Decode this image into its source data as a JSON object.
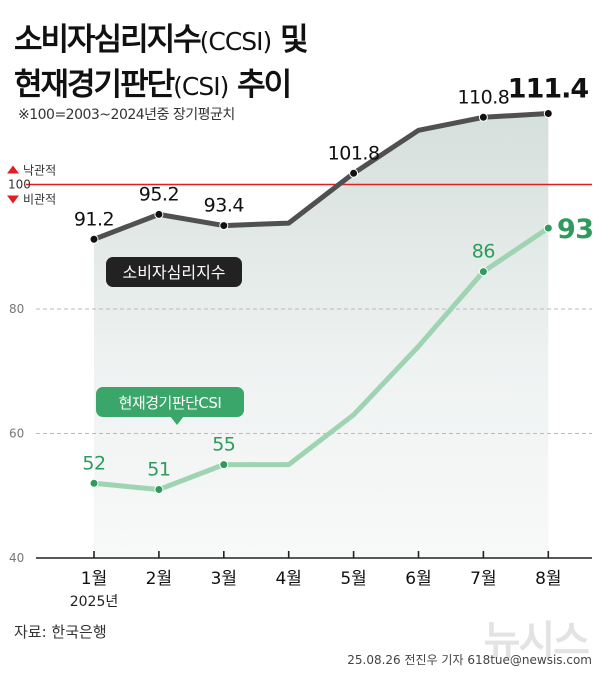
{
  "title": {
    "line1_main": "소비자심리지수",
    "line1_paren": "(CCSI)",
    "line1_tail": " 및",
    "line2_main": "현재경기판단",
    "line2_paren": "(CSI)",
    "line2_tail": " 추이"
  },
  "note": "※100=2003~2024년중 장기평균치",
  "reference_line": {
    "value": 100,
    "label": "100",
    "up_label": "낙관적",
    "down_label": "비관적",
    "color": "#e02020"
  },
  "colors": {
    "ccsi_line": "#505050",
    "ccsi_fill": "#d5dfdc",
    "csi_line": "#9fd4b3",
    "csi_text": "#2e9a5c",
    "csi_label_bg": "#3aa66a",
    "grid": "#bbbbbb",
    "axis": "#222222"
  },
  "chart_data": {
    "type": "line",
    "categories": [
      "1월",
      "2월",
      "3월",
      "4월",
      "5월",
      "6월",
      "7월",
      "8월"
    ],
    "year_label": "2025년",
    "ylim": [
      40,
      115
    ],
    "y_ticks": [
      40,
      60,
      80
    ],
    "series": [
      {
        "name": "소비자심리지수",
        "values": [
          91.2,
          95.2,
          93.4,
          93.8,
          101.8,
          108.7,
          110.8,
          111.4
        ],
        "labels": [
          "91.2",
          "95.2",
          "93.4",
          null,
          "101.8",
          null,
          "110.8",
          "111.4"
        ]
      },
      {
        "name": "현재경기판단CSI",
        "values": [
          52,
          51,
          55,
          55,
          63,
          74,
          86,
          93
        ],
        "labels": [
          "52",
          "51",
          "55",
          null,
          null,
          null,
          "86",
          "93"
        ]
      }
    ]
  },
  "source": "자료: 한국은행",
  "credit": "25.08.26 전진우 기자 618tue@newsis.com",
  "logo": "뉴시스"
}
